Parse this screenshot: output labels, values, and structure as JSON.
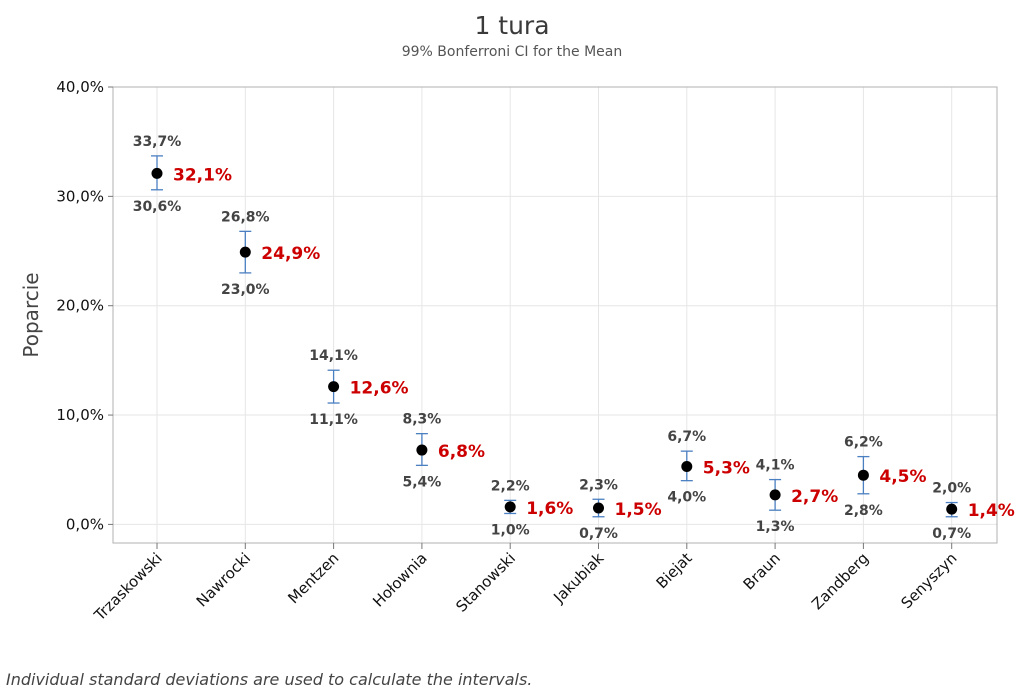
{
  "chart_data": {
    "type": "scatter",
    "title": "1 tura",
    "subtitle": "99% Bonferroni CI for the Mean",
    "ylabel": "Poparcie",
    "xlabel": "",
    "ylim": [
      -1.7,
      40.0
    ],
    "yticks": [
      0,
      10,
      20,
      30,
      40
    ],
    "ytick_labels": [
      "0,0%",
      "10,0%",
      "20,0%",
      "30,0%",
      "40,0%"
    ],
    "grid": true,
    "categories": [
      "Trzaskowski",
      "Nawrocki",
      "Mentzen",
      "Hołownia",
      "Stanowski",
      "Jakubiak",
      "Biejat",
      "Braun",
      "Zandberg",
      "Senyszyn"
    ],
    "series": [
      {
        "mean": [
          32.1,
          24.9,
          12.6,
          6.8,
          1.6,
          1.5,
          5.3,
          2.7,
          4.5,
          1.4
        ],
        "lower": [
          30.6,
          23.0,
          11.1,
          5.4,
          1.0,
          0.7,
          4.0,
          1.3,
          2.8,
          0.7
        ],
        "upper": [
          33.7,
          26.8,
          14.1,
          8.3,
          2.2,
          2.3,
          6.7,
          4.1,
          6.2,
          2.0
        ],
        "mean_labels": [
          "32,1%",
          "24,9%",
          "12,6%",
          "6,8%",
          "1,6%",
          "1,5%",
          "5,3%",
          "2,7%",
          "4,5%",
          "1,4%"
        ],
        "lower_labels": [
          "30,6%",
          "23,0%",
          "11,1%",
          "5,4%",
          "1,0%",
          "0,7%",
          "4,0%",
          "1,3%",
          "2,8%",
          "0,7%"
        ],
        "upper_labels": [
          "33,7%",
          "26,8%",
          "14,1%",
          "8,3%",
          "2,2%",
          "2,3%",
          "6,7%",
          "4,1%",
          "6,2%",
          "2,0%"
        ]
      }
    ],
    "colors": {
      "point": "#000000",
      "interval": "#4a7fc1",
      "mean_label": "#cc0000",
      "ci_label": "#444444",
      "grid": "#e6e6e6",
      "frame": "#b0b0b0"
    }
  },
  "footnote": "Individual standard deviations are used to calculate the intervals."
}
